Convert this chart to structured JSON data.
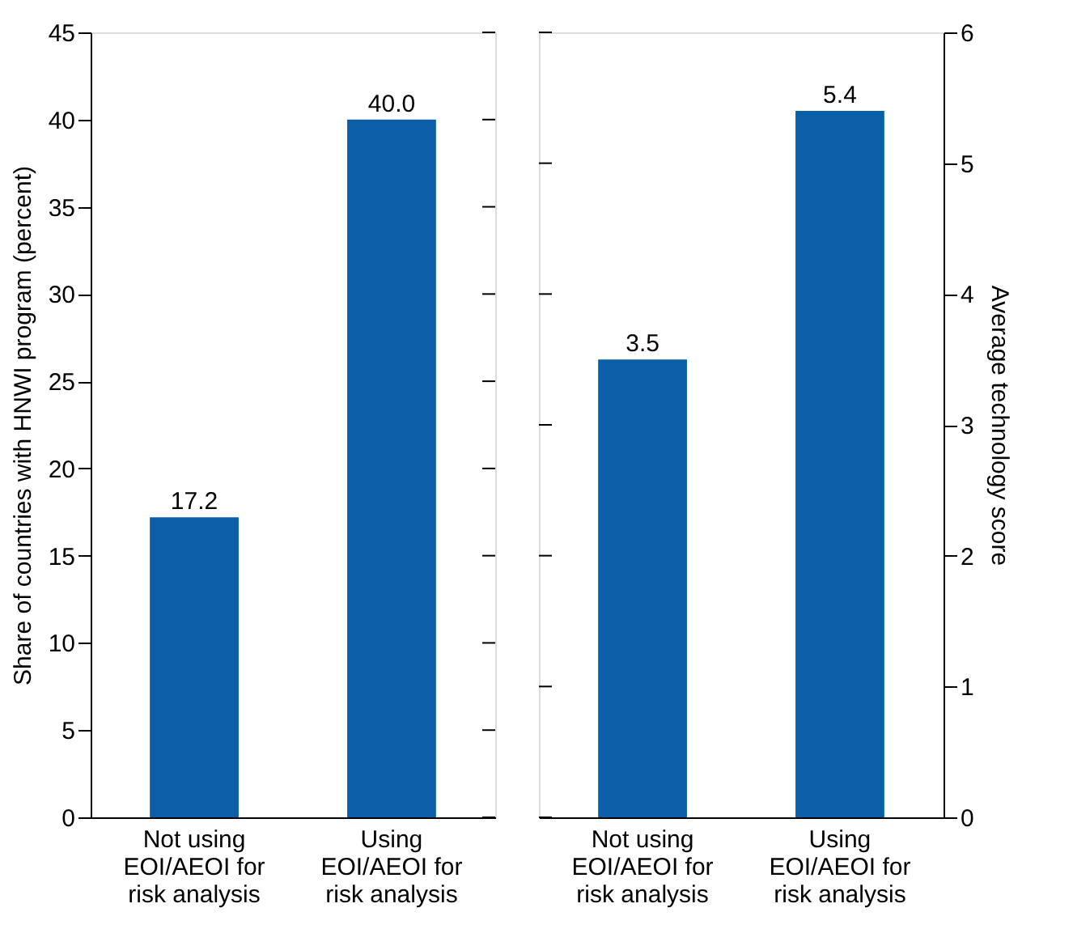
{
  "chart_data": [
    {
      "type": "bar",
      "categories": [
        "Not using EOI/AEOI for risk analysis",
        "Using EOI/AEOI for risk analysis"
      ],
      "values": [
        17.2,
        40.0
      ],
      "value_labels": [
        "17.2",
        "40.0"
      ],
      "color": "#0b5ea8",
      "ylim": [
        0,
        45
      ],
      "yticks": [
        0,
        5,
        10,
        15,
        20,
        25,
        30,
        35,
        40,
        45
      ],
      "ylabel": "Share of countries with HNWI program (percent)",
      "grid": false
    },
    {
      "type": "bar",
      "categories": [
        "Not using EOI/AEOI for risk analysis",
        "Using EOI/AEOI for risk analysis"
      ],
      "series": [
        {
          "values": [
            3.5,
            5.4
          ],
          "value_labels": [
            "3.5",
            "5.4"
          ],
          "color": "#0b5ea8",
          "axis": "y2"
        }
      ],
      "y2lim": [
        0,
        6
      ],
      "y2ticks": [
        0,
        1,
        2,
        3,
        4,
        5,
        6
      ],
      "y2label": "Average technology score",
      "grid": false
    }
  ]
}
